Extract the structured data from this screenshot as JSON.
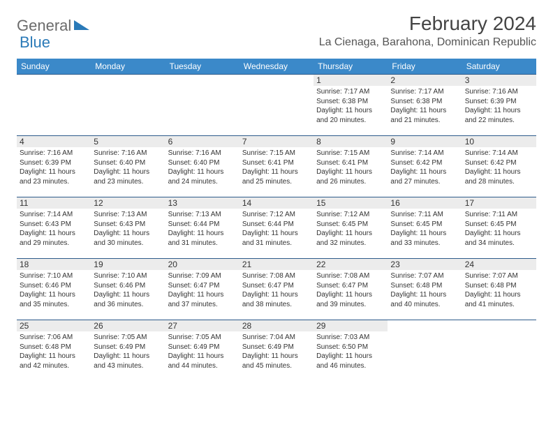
{
  "brand": {
    "part1": "General",
    "part2": "Blue"
  },
  "title": "February 2024",
  "location": "La Cienaga, Barahona, Dominican Republic",
  "colors": {
    "header_bg": "#3b89c9",
    "header_text": "#ffffff",
    "daynum_bg": "#ececec",
    "row_border": "#2c5a8a",
    "logo_gray": "#6b6b6b",
    "logo_blue": "#2a7ab8",
    "title_color": "#444444",
    "text_color": "#333333"
  },
  "daysOfWeek": [
    "Sunday",
    "Monday",
    "Tuesday",
    "Wednesday",
    "Thursday",
    "Friday",
    "Saturday"
  ],
  "grid": [
    [
      null,
      null,
      null,
      null,
      {
        "n": "1",
        "sr": "7:17 AM",
        "ss": "6:38 PM",
        "dl": "11 hours and 20 minutes."
      },
      {
        "n": "2",
        "sr": "7:17 AM",
        "ss": "6:38 PM",
        "dl": "11 hours and 21 minutes."
      },
      {
        "n": "3",
        "sr": "7:16 AM",
        "ss": "6:39 PM",
        "dl": "11 hours and 22 minutes."
      }
    ],
    [
      {
        "n": "4",
        "sr": "7:16 AM",
        "ss": "6:39 PM",
        "dl": "11 hours and 23 minutes."
      },
      {
        "n": "5",
        "sr": "7:16 AM",
        "ss": "6:40 PM",
        "dl": "11 hours and 23 minutes."
      },
      {
        "n": "6",
        "sr": "7:16 AM",
        "ss": "6:40 PM",
        "dl": "11 hours and 24 minutes."
      },
      {
        "n": "7",
        "sr": "7:15 AM",
        "ss": "6:41 PM",
        "dl": "11 hours and 25 minutes."
      },
      {
        "n": "8",
        "sr": "7:15 AM",
        "ss": "6:41 PM",
        "dl": "11 hours and 26 minutes."
      },
      {
        "n": "9",
        "sr": "7:14 AM",
        "ss": "6:42 PM",
        "dl": "11 hours and 27 minutes."
      },
      {
        "n": "10",
        "sr": "7:14 AM",
        "ss": "6:42 PM",
        "dl": "11 hours and 28 minutes."
      }
    ],
    [
      {
        "n": "11",
        "sr": "7:14 AM",
        "ss": "6:43 PM",
        "dl": "11 hours and 29 minutes."
      },
      {
        "n": "12",
        "sr": "7:13 AM",
        "ss": "6:43 PM",
        "dl": "11 hours and 30 minutes."
      },
      {
        "n": "13",
        "sr": "7:13 AM",
        "ss": "6:44 PM",
        "dl": "11 hours and 31 minutes."
      },
      {
        "n": "14",
        "sr": "7:12 AM",
        "ss": "6:44 PM",
        "dl": "11 hours and 31 minutes."
      },
      {
        "n": "15",
        "sr": "7:12 AM",
        "ss": "6:45 PM",
        "dl": "11 hours and 32 minutes."
      },
      {
        "n": "16",
        "sr": "7:11 AM",
        "ss": "6:45 PM",
        "dl": "11 hours and 33 minutes."
      },
      {
        "n": "17",
        "sr": "7:11 AM",
        "ss": "6:45 PM",
        "dl": "11 hours and 34 minutes."
      }
    ],
    [
      {
        "n": "18",
        "sr": "7:10 AM",
        "ss": "6:46 PM",
        "dl": "11 hours and 35 minutes."
      },
      {
        "n": "19",
        "sr": "7:10 AM",
        "ss": "6:46 PM",
        "dl": "11 hours and 36 minutes."
      },
      {
        "n": "20",
        "sr": "7:09 AM",
        "ss": "6:47 PM",
        "dl": "11 hours and 37 minutes."
      },
      {
        "n": "21",
        "sr": "7:08 AM",
        "ss": "6:47 PM",
        "dl": "11 hours and 38 minutes."
      },
      {
        "n": "22",
        "sr": "7:08 AM",
        "ss": "6:47 PM",
        "dl": "11 hours and 39 minutes."
      },
      {
        "n": "23",
        "sr": "7:07 AM",
        "ss": "6:48 PM",
        "dl": "11 hours and 40 minutes."
      },
      {
        "n": "24",
        "sr": "7:07 AM",
        "ss": "6:48 PM",
        "dl": "11 hours and 41 minutes."
      }
    ],
    [
      {
        "n": "25",
        "sr": "7:06 AM",
        "ss": "6:48 PM",
        "dl": "11 hours and 42 minutes."
      },
      {
        "n": "26",
        "sr": "7:05 AM",
        "ss": "6:49 PM",
        "dl": "11 hours and 43 minutes."
      },
      {
        "n": "27",
        "sr": "7:05 AM",
        "ss": "6:49 PM",
        "dl": "11 hours and 44 minutes."
      },
      {
        "n": "28",
        "sr": "7:04 AM",
        "ss": "6:49 PM",
        "dl": "11 hours and 45 minutes."
      },
      {
        "n": "29",
        "sr": "7:03 AM",
        "ss": "6:50 PM",
        "dl": "11 hours and 46 minutes."
      },
      null,
      null
    ]
  ],
  "labels": {
    "sunrise": "Sunrise:",
    "sunset": "Sunset:",
    "daylight": "Daylight:"
  }
}
